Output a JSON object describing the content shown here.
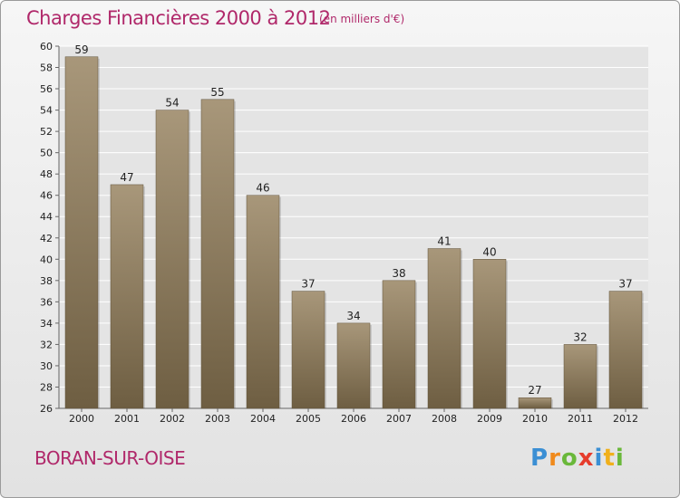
{
  "chart_data": {
    "type": "bar",
    "title": "Charges Financières 2000 à 2012",
    "subtitle": "(en milliers d'€)",
    "categories": [
      "2000",
      "2001",
      "2002",
      "2003",
      "2004",
      "2005",
      "2006",
      "2007",
      "2008",
      "2009",
      "2010",
      "2011",
      "2012"
    ],
    "values": [
      59,
      47,
      54,
      55,
      46,
      37,
      34,
      38,
      41,
      40,
      27,
      32,
      37
    ],
    "ylim": [
      26,
      60
    ],
    "yticks": [
      26,
      28,
      30,
      32,
      34,
      36,
      38,
      40,
      42,
      44,
      46,
      48,
      50,
      52,
      54,
      56,
      58,
      60
    ],
    "grid": true,
    "bar_color": "#8a7a5e",
    "title_color": "#b0286a"
  },
  "commune": "BORAN-SUR-OISE",
  "logo": {
    "letters": [
      "P",
      "r",
      "o",
      "x",
      "i",
      "t",
      "i"
    ],
    "colors": [
      "#3b8fd4",
      "#f08a1c",
      "#6ab83a",
      "#e63c2c",
      "#3b8fd4",
      "#f0b01c",
      "#6ab83a"
    ]
  }
}
